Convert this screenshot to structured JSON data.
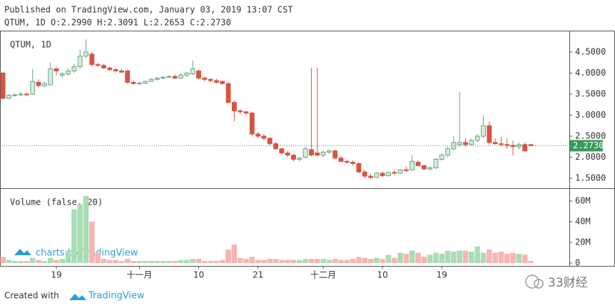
{
  "header": {
    "published": "Published on TradingView.com, January 03, 2019 13:07 CST",
    "summary": "QTUM, 1D O:2.2990 H:2.3091 L:2.2653 C:2.2730"
  },
  "footer": {
    "created": "Created with",
    "brand": "TradingView"
  },
  "watermark": {
    "charts": "charts by TradingView",
    "publisher": "33财经"
  },
  "chart_data": {
    "type": "candlestick",
    "pane_label": "QTUM, 1D",
    "volume_label": "Volume (false, 20)",
    "up_color": "#6ba583",
    "down_color": "#d75442",
    "volume_up_color": "#a9dcb4",
    "volume_down_color": "#f7b4b0",
    "ylim": [
      1.28,
      4.99
    ],
    "yticks": [
      {
        "value": 1.5,
        "label": "1.5000"
      },
      {
        "value": 2.0,
        "label": "2.0000"
      },
      {
        "value": 2.5,
        "label": "2.5000"
      },
      {
        "value": 3.0,
        "label": "3.0000"
      },
      {
        "value": 3.5,
        "label": "3.5000"
      },
      {
        "value": 4.0,
        "label": "4.0000"
      },
      {
        "value": 4.5,
        "label": "4.5000"
      }
    ],
    "vlim": [
      -2.8,
      71.7
    ],
    "vticks": [
      0,
      {
        "value": 20,
        "label": "20M"
      },
      {
        "value": 40,
        "label": "40M"
      },
      {
        "value": 60,
        "label": "60M"
      }
    ],
    "last_price": {
      "value": 2.273,
      "label": "2.2730"
    },
    "xticks": [
      {
        "value": 9,
        "label": "19"
      },
      {
        "value": 23,
        "label": "十一月"
      },
      {
        "value": 33,
        "label": "10"
      },
      {
        "value": 43,
        "label": "21"
      },
      {
        "value": 54,
        "label": "十二月"
      },
      {
        "value": 64,
        "label": "10"
      },
      {
        "value": 74,
        "label": "19"
      }
    ],
    "open": [
      4.0,
      3.4,
      3.47,
      3.48,
      3.5,
      3.5,
      3.78,
      3.7,
      3.72,
      4.1,
      3.95,
      3.98,
      4.05,
      4.15,
      4.4,
      4.45,
      4.2,
      4.18,
      4.12,
      4.08,
      4.05,
      4.05,
      3.78,
      3.75,
      3.76,
      3.8,
      3.85,
      3.88,
      3.9,
      3.92,
      3.88,
      3.95,
      3.98,
      4.05,
      3.88,
      3.85,
      3.82,
      3.8,
      3.75,
      3.3,
      3.1,
      3.08,
      3.05,
      2.55,
      2.5,
      2.45,
      2.32,
      2.2,
      2.1,
      2.05,
      1.95,
      2.0,
      2.18,
      2.1,
      2.05,
      2.12,
      2.15,
      1.98,
      1.9,
      1.88,
      1.85,
      1.65,
      1.55,
      1.52,
      1.62,
      1.56,
      1.64,
      1.62,
      1.7,
      1.7,
      1.88,
      1.8,
      1.72,
      1.75,
      1.95,
      2.05,
      2.2,
      2.3,
      2.35,
      2.3,
      2.4,
      2.5,
      2.75,
      2.35,
      2.32,
      2.3,
      2.28,
      2.25,
      2.3,
      2.299
    ],
    "high": [
      4.02,
      3.5,
      3.52,
      3.55,
      3.53,
      4.1,
      3.85,
      3.8,
      4.25,
      4.15,
      4.02,
      4.1,
      4.22,
      4.55,
      4.8,
      4.5,
      4.25,
      4.22,
      4.15,
      4.12,
      4.1,
      4.08,
      3.82,
      3.8,
      3.82,
      3.88,
      3.9,
      3.92,
      3.95,
      3.96,
      4.0,
      4.02,
      4.3,
      4.08,
      3.92,
      3.88,
      3.86,
      3.82,
      3.78,
      3.35,
      3.15,
      3.1,
      3.08,
      2.6,
      2.55,
      2.48,
      2.35,
      2.22,
      2.15,
      2.08,
      2.0,
      2.25,
      4.12,
      4.12,
      2.15,
      2.18,
      2.18,
      2.02,
      1.95,
      1.92,
      1.88,
      1.7,
      1.6,
      1.65,
      1.66,
      1.66,
      1.7,
      1.72,
      1.78,
      2.05,
      1.92,
      1.82,
      1.78,
      1.98,
      2.1,
      2.25,
      2.5,
      3.55,
      2.45,
      2.45,
      2.55,
      3.0,
      2.85,
      2.45,
      2.48,
      2.45,
      2.4,
      2.35,
      2.35,
      2.3091
    ],
    "low": [
      3.38,
      3.38,
      3.44,
      3.45,
      3.46,
      3.48,
      3.66,
      3.66,
      3.7,
      3.95,
      3.88,
      3.94,
      4.0,
      4.1,
      4.35,
      4.15,
      4.15,
      4.1,
      4.05,
      4.02,
      4.0,
      3.75,
      3.72,
      3.72,
      3.73,
      3.78,
      3.82,
      3.85,
      3.88,
      3.86,
      3.86,
      3.9,
      3.95,
      3.85,
      3.8,
      3.78,
      3.75,
      3.72,
      3.28,
      2.85,
      3.02,
      3.0,
      2.5,
      2.45,
      2.4,
      2.28,
      2.18,
      2.08,
      2.0,
      1.9,
      1.9,
      1.98,
      2.02,
      2.02,
      2.0,
      2.08,
      1.95,
      1.88,
      1.84,
      1.8,
      1.62,
      1.5,
      1.48,
      1.5,
      1.52,
      1.54,
      1.58,
      1.6,
      1.65,
      1.68,
      1.78,
      1.7,
      1.68,
      1.72,
      1.92,
      2.0,
      2.15,
      2.25,
      2.25,
      2.28,
      2.35,
      2.45,
      2.3,
      2.3,
      2.25,
      2.2,
      2.05,
      2.18,
      2.12,
      2.2653
    ],
    "close": [
      3.4,
      3.47,
      3.48,
      3.5,
      3.48,
      3.8,
      3.7,
      3.75,
      4.1,
      4.05,
      3.98,
      4.05,
      4.15,
      4.4,
      4.5,
      4.2,
      4.18,
      4.12,
      4.08,
      4.05,
      4.02,
      3.78,
      3.75,
      3.76,
      3.8,
      3.85,
      3.88,
      3.9,
      3.92,
      3.88,
      3.95,
      4.0,
      4.1,
      3.88,
      3.85,
      3.82,
      3.78,
      3.75,
      3.3,
      3.1,
      3.08,
      3.05,
      2.55,
      2.5,
      2.45,
      2.32,
      2.2,
      2.1,
      2.05,
      1.95,
      1.98,
      2.2,
      2.05,
      2.05,
      2.12,
      2.15,
      1.98,
      1.9,
      1.88,
      1.85,
      1.65,
      1.55,
      1.52,
      1.62,
      1.56,
      1.64,
      1.62,
      1.7,
      1.68,
      1.9,
      1.8,
      1.72,
      1.75,
      1.95,
      2.05,
      2.2,
      2.35,
      2.35,
      2.3,
      2.4,
      2.5,
      2.75,
      2.35,
      2.32,
      2.3,
      2.28,
      2.25,
      2.3,
      2.15,
      2.273
    ],
    "volume": [
      6,
      3,
      2,
      2,
      2,
      5,
      3,
      2,
      5,
      3,
      4,
      12,
      52,
      57,
      65,
      40,
      10,
      4,
      3,
      3,
      2,
      4,
      2,
      2,
      2,
      2,
      2,
      2,
      2,
      2,
      3,
      3,
      4,
      4,
      2,
      2,
      2,
      3,
      13,
      18,
      5,
      4,
      6,
      3,
      3,
      4,
      4,
      3,
      3,
      3,
      3,
      4,
      4,
      4,
      4,
      3,
      4,
      3,
      3,
      4,
      6,
      5,
      4,
      5,
      4,
      8,
      5,
      10,
      9,
      12,
      10,
      6,
      8,
      10,
      9,
      12,
      11,
      12,
      12,
      11,
      16,
      10,
      13,
      10,
      11,
      9,
      10,
      9,
      8,
      2
    ]
  }
}
